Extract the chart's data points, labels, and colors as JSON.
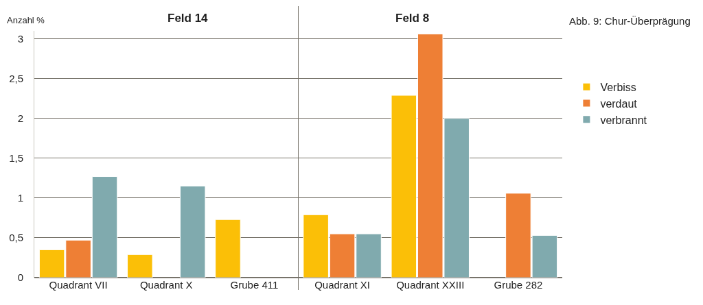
{
  "chart_data": {
    "type": "bar",
    "title": "Abb. 9: Chur-Überprägung",
    "ylabel": "Anzahl %",
    "categories": [
      "Quadrant VII",
      "Quadrant X",
      "Grube 411",
      "Quadrant XI",
      "Quadrant XXIII",
      "Grube 282"
    ],
    "series": [
      {
        "name": "Verbiss",
        "color": "#fbbf07",
        "values": [
          0.35,
          0.29,
          0.73,
          0.79,
          2.29,
          null
        ]
      },
      {
        "name": "verdaut",
        "color": "#ee7f35",
        "values": [
          0.47,
          null,
          null,
          0.55,
          3.06,
          1.06
        ]
      },
      {
        "name": "verbrannt",
        "color": "#80aaae",
        "values": [
          1.27,
          1.15,
          null,
          0.55,
          2.0,
          0.53
        ]
      }
    ],
    "ylim": [
      0,
      3.1
    ],
    "yticks": [
      0,
      {
        "value": 0.5,
        "label": "0,5"
      },
      1,
      {
        "value": 1.5,
        "label": "1,5"
      },
      2,
      {
        "value": 2.5,
        "label": "2,5"
      },
      3
    ],
    "grid": "y",
    "legend": "right",
    "annotations": [
      "Feld 14",
      "Feld 8"
    ]
  }
}
